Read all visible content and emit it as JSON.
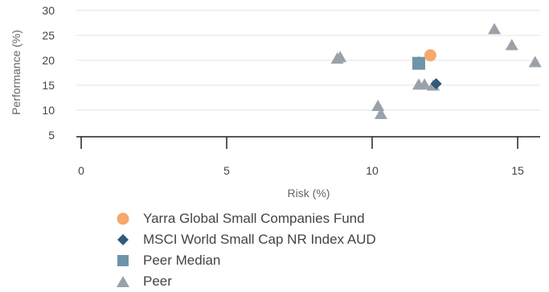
{
  "chart_data": {
    "type": "scatter",
    "title": "",
    "xlabel": "Risk (%)",
    "ylabel": "Performance (%)",
    "xlim": [
      0,
      15.7
    ],
    "ylim": [
      5,
      30
    ],
    "x_ticks": [
      "0",
      "5",
      "10",
      "15"
    ],
    "y_ticks": [
      "30",
      "25",
      "20",
      "15",
      "10",
      "5"
    ],
    "grid": "horizontal",
    "legend_position": "bottom-left",
    "series": [
      {
        "name": "Yarra Global Small Companies Fund",
        "marker": "circle",
        "color": "#f7a86b",
        "points": [
          [
            12.0,
            21.0
          ]
        ]
      },
      {
        "name": "MSCI World Small Cap NR Index AUD",
        "marker": "diamond",
        "color": "#2f5a7c",
        "points": [
          [
            12.2,
            15.3
          ]
        ]
      },
      {
        "name": "Peer Median",
        "marker": "square",
        "color": "#6e94a8",
        "points": [
          [
            11.6,
            19.4
          ]
        ]
      },
      {
        "name": "Peer",
        "marker": "triangle",
        "color": "#9aa1a8",
        "points": [
          [
            8.8,
            20.3
          ],
          [
            8.9,
            20.6
          ],
          [
            11.6,
            19.6
          ],
          [
            11.6,
            15.1
          ],
          [
            11.8,
            15.1
          ],
          [
            12.1,
            14.9
          ],
          [
            10.2,
            10.8
          ],
          [
            10.3,
            9.2
          ],
          [
            14.2,
            26.2
          ],
          [
            14.8,
            23.0
          ],
          [
            15.6,
            19.6
          ]
        ]
      }
    ]
  }
}
